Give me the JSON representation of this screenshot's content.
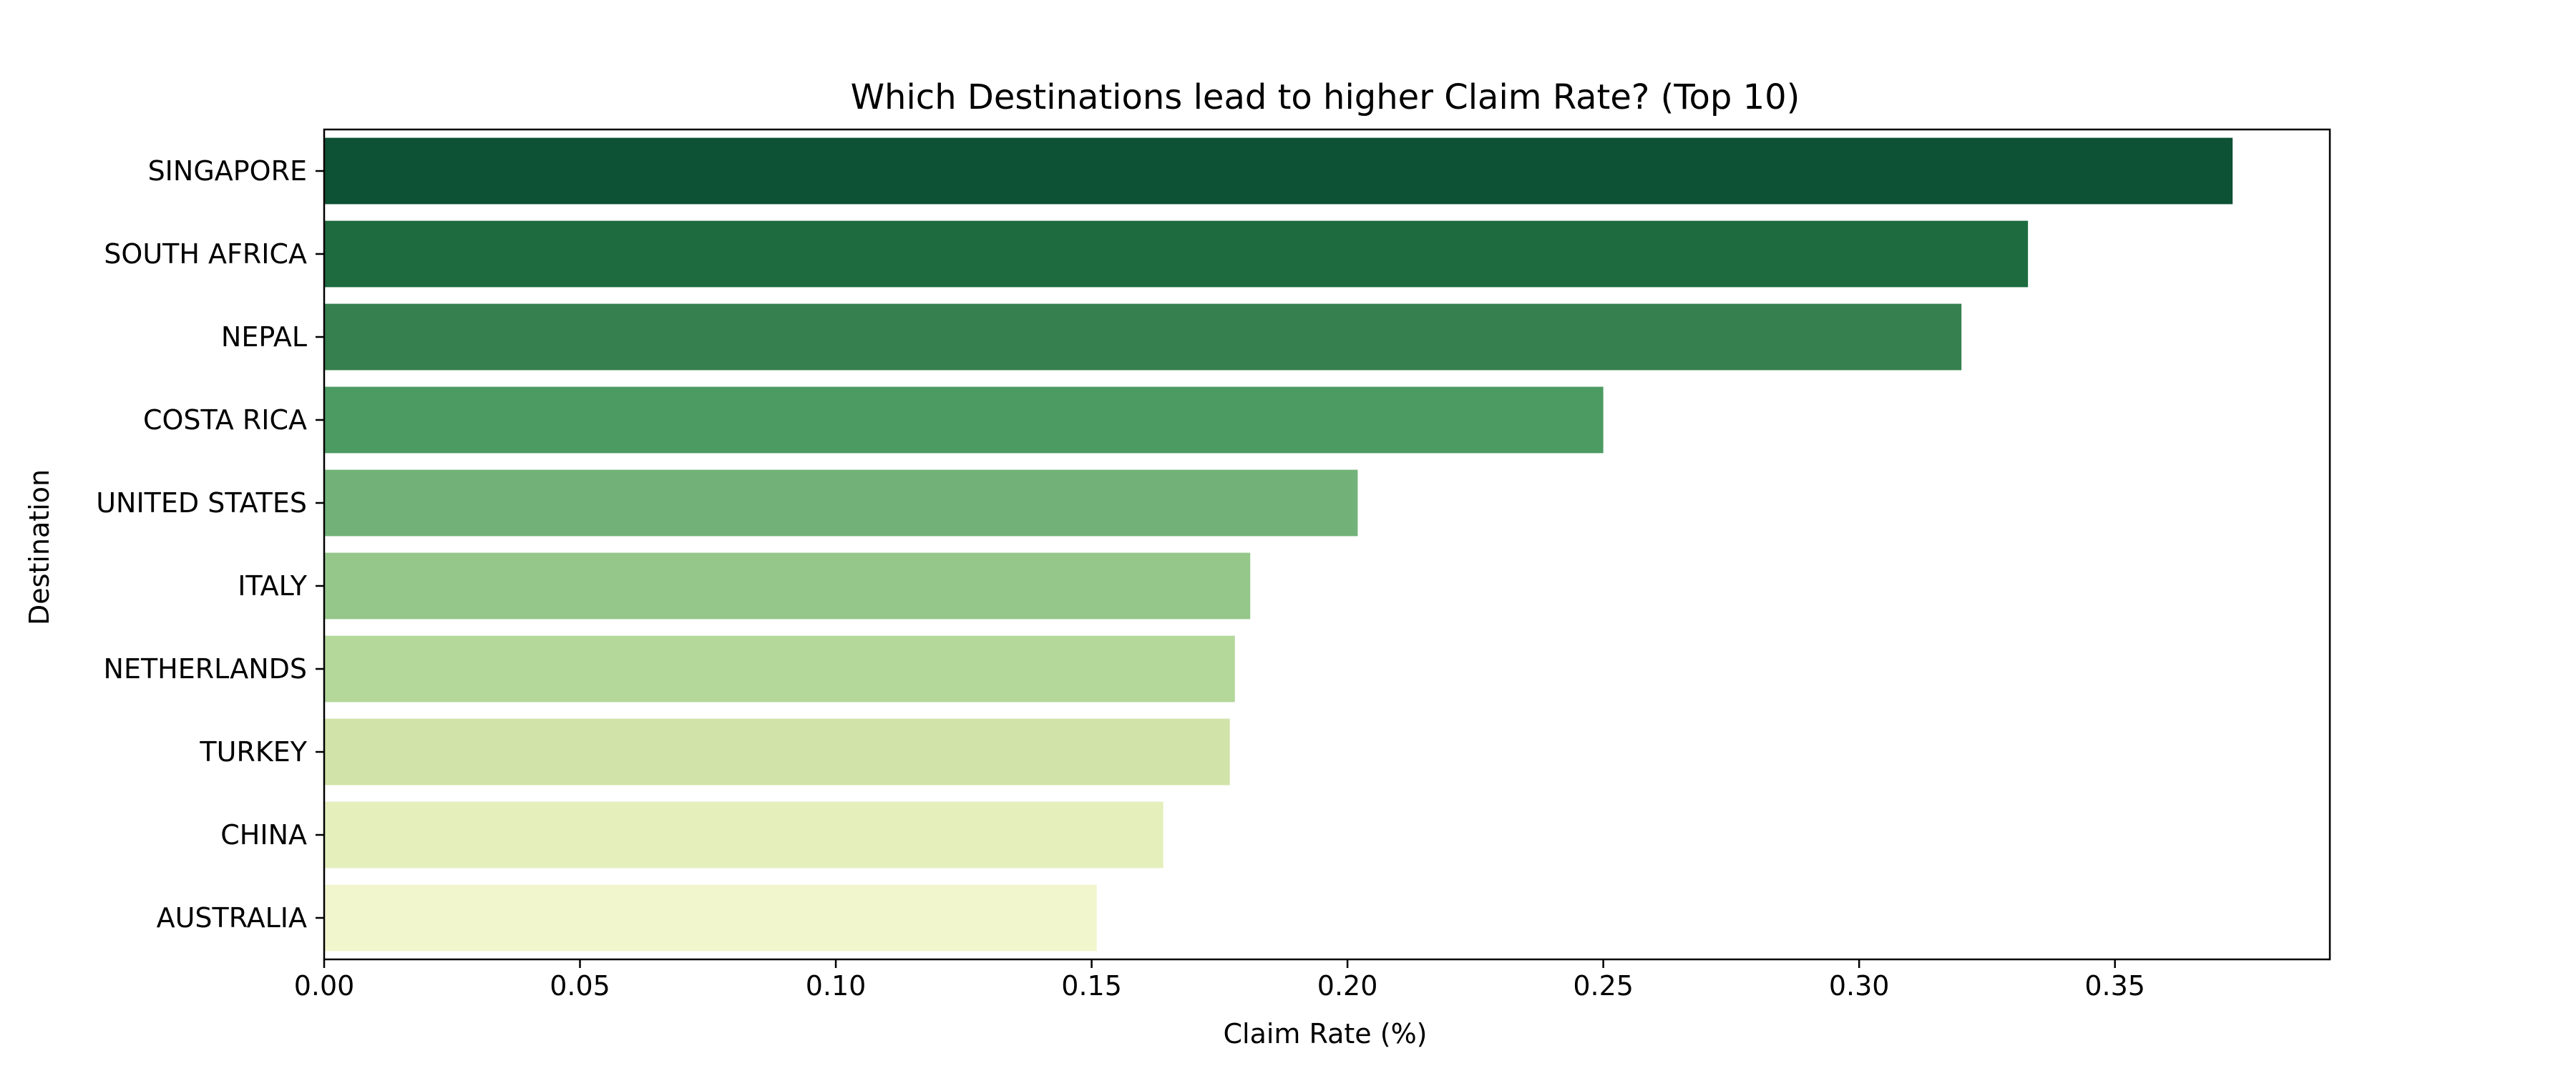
{
  "chart_data": {
    "type": "bar",
    "orientation": "horizontal",
    "title": "Which Destinations lead to higher Claim Rate? (Top 10)",
    "xlabel": "Claim Rate (%)",
    "ylabel": "Destination",
    "xlim": [
      0,
      0.392
    ],
    "xticks": [
      0.0,
      0.05,
      0.1,
      0.15,
      0.2,
      0.25,
      0.3,
      0.35
    ],
    "xtick_labels": [
      "0.00",
      "0.05",
      "0.10",
      "0.15",
      "0.20",
      "0.25",
      "0.30",
      "0.35"
    ],
    "grid": false,
    "categories": [
      "SINGAPORE",
      "SOUTH AFRICA",
      "NEPAL",
      "COSTA RICA",
      "UNITED STATES",
      "ITALY",
      "NETHERLANDS",
      "TURKEY",
      "CHINA",
      "AUSTRALIA"
    ],
    "values": [
      0.373,
      0.333,
      0.32,
      0.25,
      0.202,
      0.181,
      0.178,
      0.177,
      0.164,
      0.151
    ],
    "colors": [
      "#0e5235",
      "#1d6b3f",
      "#35804e",
      "#4c9b62",
      "#72b278",
      "#95c78a",
      "#b4d79a",
      "#d1e3a8",
      "#e4efbc",
      "#f2f6cd"
    ]
  }
}
